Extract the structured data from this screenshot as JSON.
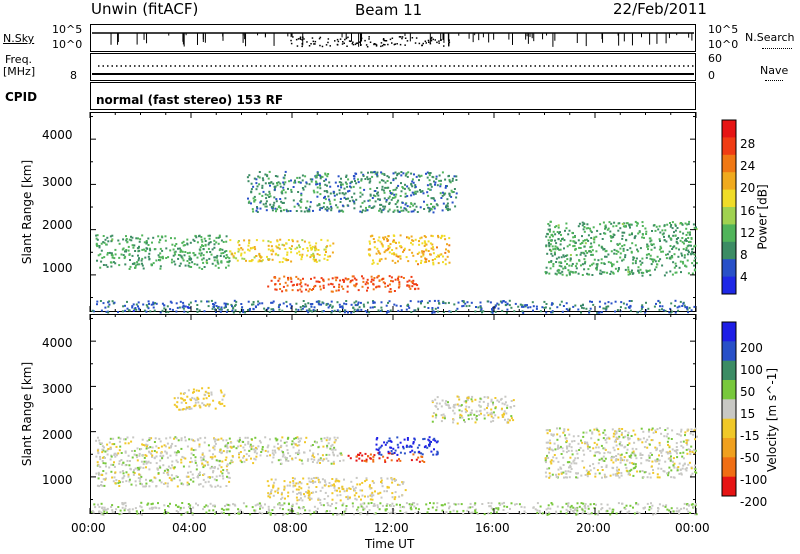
{
  "header": {
    "station": "Unwin (fitACF)",
    "beam": "Beam 11",
    "date": "22/Feb/2011"
  },
  "top_panels": {
    "nsky": {
      "left_label": "N.Sky",
      "left_ticks": [
        "10^5",
        "10^0"
      ],
      "right_ticks": [
        "10^5",
        "10^0"
      ],
      "right_label": "N.Search"
    },
    "freq": {
      "left_label_line1": "Freq.",
      "left_label_line2": "[MHz]",
      "left_tick": "8",
      "right_ticks": [
        "60",
        "0"
      ],
      "right_label": "Nave"
    },
    "cpid": {
      "label": "CPID",
      "text": "normal (fast stereo) 153 RF"
    }
  },
  "x_axis": {
    "label": "Time UT",
    "ticks": [
      "00:00",
      "04:00",
      "08:00",
      "12:00",
      "16:00",
      "20:00",
      "00:00"
    ]
  },
  "colors": {
    "power_scale": [
      "#1e28e6",
      "#2850c8",
      "#3c8c64",
      "#50b45a",
      "#a0d250",
      "#f0dc28",
      "#f0aa1e",
      "#f07814",
      "#f03c14",
      "#e61414"
    ],
    "velocity_scale": [
      "#1e1ee6",
      "#2850c8",
      "#3c8c64",
      "#78c83c",
      "#c8c8c4",
      "#f0c828",
      "#f0a01e",
      "#f06e14",
      "#e61414"
    ]
  },
  "chart_data": [
    {
      "type": "heatmap",
      "title": "",
      "xlabel": "",
      "ylabel": "Slant Range [km]",
      "xlim": [
        0,
        24
      ],
      "ylim": [
        180,
        4600
      ],
      "yticks": [
        "1000",
        "2000",
        "3000",
        "4000"
      ],
      "colorbar": {
        "label": "Power [dB]",
        "range": [
          0,
          32
        ],
        "ticks": [
          "4",
          "8",
          "12",
          "16",
          "20",
          "24",
          "28"
        ]
      },
      "regions": [
        {
          "name": "west-band",
          "t0": 0.2,
          "t1": 5.5,
          "r0": 1150,
          "r1": 1900,
          "level": 10
        },
        {
          "name": "main-arc",
          "t0": 5.5,
          "t1": 9.6,
          "r0": 1300,
          "r1": 1800,
          "level": 18
        },
        {
          "name": "upper-patch",
          "t0": 6.2,
          "t1": 14.5,
          "r0": 2400,
          "r1": 3300,
          "level": 8
        },
        {
          "name": "red-streak",
          "t0": 7.0,
          "t1": 13.0,
          "r0": 650,
          "r1": 1000,
          "level": 26
        },
        {
          "name": "mid-blob",
          "t0": 11.0,
          "t1": 14.2,
          "r0": 1250,
          "r1": 1900,
          "level": 20
        },
        {
          "name": "east-band",
          "t0": 18.0,
          "t1": 24.0,
          "r0": 1000,
          "r1": 2200,
          "level": 10
        },
        {
          "name": "ground-noise",
          "t0": 0.0,
          "t1": 24.0,
          "r0": 180,
          "r1": 450,
          "level": 6
        }
      ]
    },
    {
      "type": "heatmap",
      "title": "",
      "xlabel": "Time UT",
      "ylabel": "Slant Range [km]",
      "xlim": [
        0,
        24
      ],
      "ylim": [
        180,
        4600
      ],
      "yticks": [
        "1000",
        "2000",
        "3000",
        "4000"
      ],
      "colorbar": {
        "label": "Velocity [m s^-1]",
        "range": [
          -250,
          250
        ],
        "ticks": [
          "200",
          "100",
          "50",
          "15",
          "-15",
          "-50",
          "-100",
          "-200"
        ]
      },
      "regions": [
        {
          "name": "west-band",
          "t0": 0.2,
          "t1": 5.5,
          "r0": 800,
          "r1": 1900,
          "level": 0
        },
        {
          "name": "grey-arc",
          "t0": 5.5,
          "t1": 10.0,
          "r0": 1300,
          "r1": 1900,
          "level": 0
        },
        {
          "name": "orange-patch",
          "t0": 3.3,
          "t1": 5.3,
          "r0": 2500,
          "r1": 3000,
          "level": -40
        },
        {
          "name": "yellow-blob",
          "t0": 7.0,
          "t1": 12.5,
          "r0": 500,
          "r1": 1000,
          "level": -30
        },
        {
          "name": "red-streak",
          "t0": 10.2,
          "t1": 13.2,
          "r0": 1350,
          "r1": 1550,
          "level": -200
        },
        {
          "name": "blue-blob",
          "t0": 11.3,
          "t1": 13.8,
          "r0": 1500,
          "r1": 1900,
          "level": 200
        },
        {
          "name": "grey-mid",
          "t0": 13.5,
          "t1": 16.8,
          "r0": 2200,
          "r1": 2800,
          "level": 0
        },
        {
          "name": "east-band",
          "t0": 18.0,
          "t1": 24.0,
          "r0": 1000,
          "r1": 2100,
          "level": 0
        },
        {
          "name": "ground-noise",
          "t0": 0.0,
          "t1": 24.0,
          "r0": 180,
          "r1": 450,
          "level": 20
        }
      ]
    }
  ]
}
